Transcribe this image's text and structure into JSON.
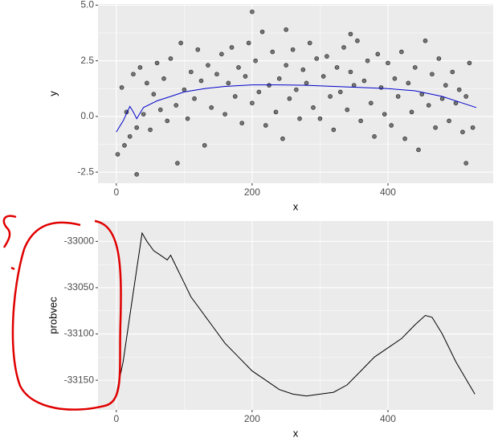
{
  "chart_data": [
    {
      "type": "scatter",
      "x_label": "x",
      "y_label": "y",
      "xlim": [
        -27,
        555
      ],
      "ylim": [
        -3.0,
        5.05
      ],
      "xticks": [
        0,
        200,
        400
      ],
      "yticks": [
        {
          "value": 5,
          "label": "5.0"
        },
        2.5,
        {
          "value": 0,
          "label": "0.0"
        },
        -2.5
      ],
      "grid": true,
      "points": {
        "color": "#000000",
        "x": [
          2,
          8,
          12,
          15,
          20,
          25,
          30,
          35,
          40,
          45,
          50,
          55,
          60,
          65,
          70,
          75,
          80,
          88,
          95,
          100,
          105,
          110,
          115,
          120,
          125,
          130,
          135,
          140,
          148,
          155,
          160,
          165,
          170,
          175,
          180,
          185,
          190,
          195,
          200,
          205,
          210,
          215,
          220,
          225,
          230,
          235,
          240,
          245,
          250,
          255,
          260,
          265,
          270,
          275,
          280,
          285,
          290,
          295,
          300,
          305,
          310,
          315,
          320,
          325,
          330,
          335,
          340,
          345,
          350,
          355,
          360,
          365,
          370,
          375,
          380,
          385,
          390,
          395,
          400,
          405,
          410,
          415,
          420,
          425,
          430,
          435,
          440,
          445,
          450,
          455,
          460,
          465,
          470,
          475,
          480,
          485,
          490,
          495,
          500,
          505,
          510,
          515,
          520,
          525,
          30,
          200,
          250,
          90,
          515,
          345
        ],
        "y": [
          -1.7,
          1.3,
          -1.3,
          0.2,
          -0.9,
          1.9,
          -0.5,
          2.2,
          0.1,
          1.5,
          -0.6,
          1.0,
          2.4,
          0.3,
          1.7,
          -0.2,
          2.6,
          0.5,
          3.3,
          1.2,
          -0.1,
          2.0,
          0.8,
          3.0,
          1.6,
          -1.3,
          2.3,
          0.4,
          1.9,
          2.8,
          0.1,
          1.5,
          3.1,
          0.9,
          2.2,
          -0.3,
          1.8,
          3.3,
          0.6,
          2.5,
          1.1,
          3.8,
          -0.4,
          1.4,
          2.9,
          0.2,
          1.7,
          -1.0,
          2.3,
          0.8,
          3.0,
          1.2,
          -0.1,
          2.1,
          1.5,
          3.3,
          0.4,
          2.6,
          -0.1,
          1.8,
          2.7,
          0.9,
          -0.6,
          2.2,
          1.1,
          3.1,
          0.3,
          2.0,
          1.4,
          3.4,
          -0.2,
          1.6,
          2.5,
          0.6,
          -0.9,
          2.8,
          1.3,
          0.1,
          2.4,
          -0.4,
          1.7,
          0.9,
          2.9,
          -1.0,
          1.5,
          0.2,
          2.2,
          -1.5,
          1.0,
          3.4,
          0.5,
          1.9,
          -0.5,
          2.6,
          0.8,
          1.4,
          -0.2,
          2.0,
          0.6,
          1.2,
          -0.7,
          0.9,
          2.4,
          -0.5,
          -2.6,
          4.7,
          3.9,
          -2.1,
          -2.1,
          3.7
        ]
      },
      "fit": {
        "color": "#0000cd",
        "x": [
          0,
          10,
          20,
          25,
          30,
          40,
          60,
          80,
          100,
          130,
          160,
          200,
          240,
          280,
          320,
          360,
          400,
          440,
          480,
          510,
          530
        ],
        "y": [
          -0.7,
          -0.2,
          0.45,
          0.2,
          -0.1,
          0.4,
          0.7,
          0.9,
          1.1,
          1.25,
          1.35,
          1.42,
          1.42,
          1.4,
          1.35,
          1.3,
          1.25,
          1.15,
          0.9,
          0.6,
          0.4
        ]
      }
    },
    {
      "type": "line",
      "x_label": "x",
      "y_label": "probvec",
      "xlim": [
        -27,
        555
      ],
      "ylim": [
        -33182,
        -32978
      ],
      "xticks": [
        0,
        200,
        400
      ],
      "yticks": [
        -33000,
        -33050,
        -33100,
        -33150
      ],
      "grid": true,
      "color": "#000000",
      "x": [
        0,
        10,
        20,
        30,
        38,
        45,
        55,
        65,
        75,
        80,
        90,
        100,
        110,
        120,
        140,
        160,
        180,
        200,
        220,
        240,
        260,
        280,
        300,
        320,
        340,
        360,
        380,
        400,
        420,
        440,
        455,
        465,
        480,
        500,
        520,
        528
      ],
      "y": [
        -33165,
        -33130,
        -33080,
        -33030,
        -32991,
        -33000,
        -33010,
        -33015,
        -33020,
        -33015,
        -33030,
        -33045,
        -33060,
        -33070,
        -33090,
        -33110,
        -33125,
        -33140,
        -33150,
        -33160,
        -33165,
        -33167,
        -33165,
        -33163,
        -33155,
        -33140,
        -33125,
        -33115,
        -33105,
        -33090,
        -33080,
        -33082,
        -33100,
        -33130,
        -33155,
        -33165
      ]
    }
  ]
}
